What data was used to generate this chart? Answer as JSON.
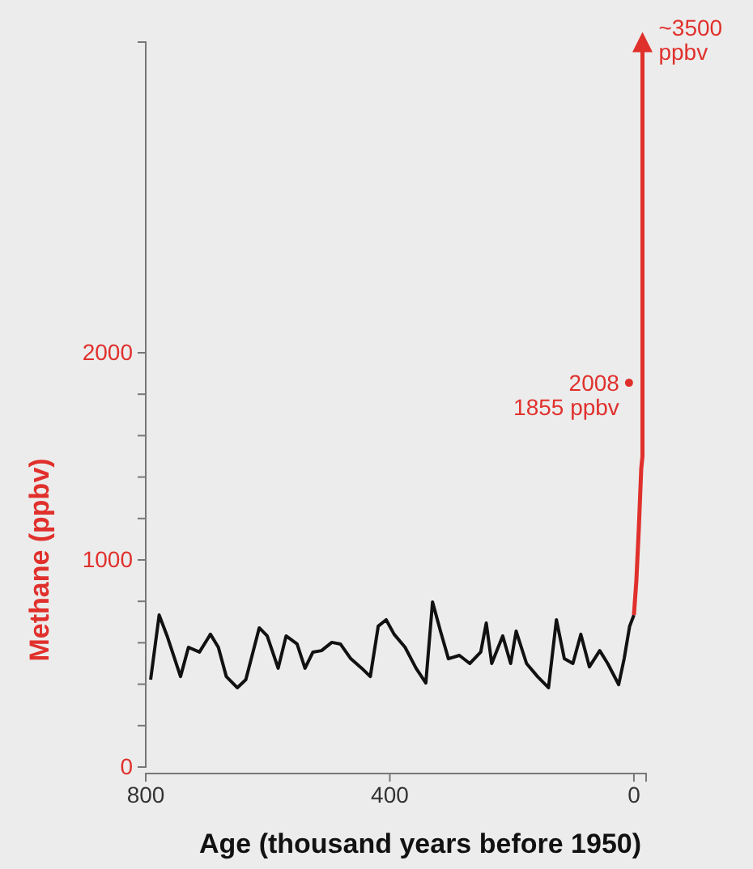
{
  "chart_data": {
    "type": "line",
    "xlabel": "Age (thousand years before 1950)",
    "ylabel": "Methane (ppbv)",
    "xlim": [
      800,
      -20
    ],
    "xticks": [
      800,
      400,
      0
    ],
    "ylim": [
      0,
      3500
    ],
    "yticks": [
      0,
      {
        "value": 200,
        "label": null
      },
      {
        "value": 400,
        "label": null
      },
      {
        "value": 600,
        "label": null
      },
      {
        "value": 800,
        "label": null
      },
      1000,
      {
        "value": 1200,
        "label": null
      },
      {
        "value": 1400,
        "label": null
      },
      {
        "value": 1600,
        "label": null
      },
      {
        "value": 1800,
        "label": null
      },
      2000
    ],
    "grid": false,
    "line_style": "solid",
    "series": [
      {
        "color": "#111111",
        "x": [
          792,
          778,
          765,
          743,
          730,
          712,
          694,
          681,
          668,
          650,
          636,
          614,
          601,
          583,
          570,
          552,
          539,
          526,
          512,
          495,
          481,
          464,
          446,
          432,
          419,
          406,
          393,
          375,
          357,
          341,
          330,
          317,
          304,
          286,
          269,
          251,
          242,
          233,
          215,
          202,
          193,
          176,
          158,
          140,
          127,
          114,
          100,
          87,
          73,
          56,
          43,
          25,
          16,
          7,
          0
        ],
        "values": [
          422,
          734,
          633,
          437,
          578,
          555,
          641,
          578,
          437,
          383,
          422,
          672,
          633,
          477,
          633,
          594,
          477,
          555,
          562,
          602,
          594,
          523,
          477,
          437,
          680,
          711,
          641,
          578,
          477,
          406,
          797,
          656,
          523,
          539,
          500,
          555,
          695,
          500,
          633,
          500,
          656,
          500,
          437,
          383,
          711,
          523,
          500,
          641,
          484,
          562,
          500,
          398,
          523,
          680,
          734
        ]
      },
      {
        "color": "#e0302c",
        "x": [
          0,
          -4,
          -8,
          -12,
          -14,
          -14
        ],
        "values": [
          734,
          900,
          1150,
          1440,
          1500,
          3500
        ]
      },
      {
        "type": "scatter",
        "color": "#e0302c",
        "x": [
          8
        ],
        "values": [
          1855
        ]
      }
    ],
    "annotations": [
      {
        "text": "2008\n1855 ppbv",
        "x": 8,
        "y": 1855
      },
      {
        "text": "~3500\nppbv",
        "x": -14,
        "y": 3500
      }
    ]
  }
}
